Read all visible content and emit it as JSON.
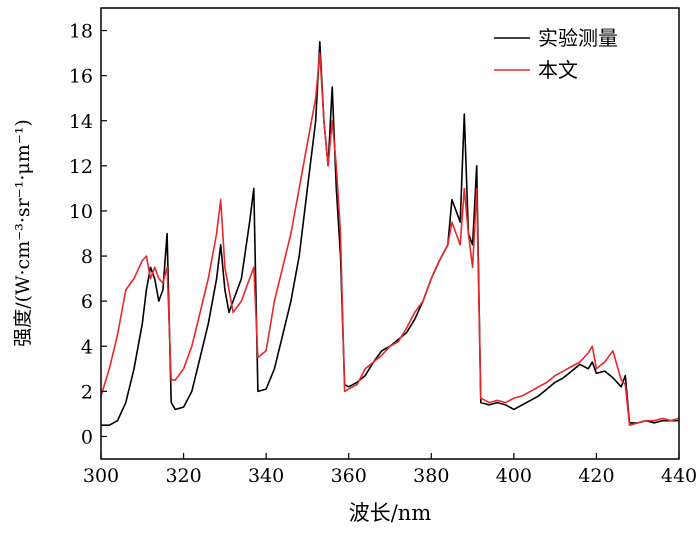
{
  "chart_data": {
    "type": "line",
    "xlabel": "波长/nm",
    "ylabel": "强度/(W·cm⁻³·sr⁻¹·μm⁻¹)",
    "xlim": [
      300,
      440
    ],
    "ylim": [
      -1,
      19
    ],
    "xticks": [
      300,
      320,
      340,
      360,
      380,
      400,
      420,
      440
    ],
    "yticks": [
      0,
      2,
      4,
      6,
      8,
      10,
      12,
      14,
      16,
      18
    ],
    "grid": false,
    "legend_position": "top-right",
    "series": [
      {
        "name": "实验测量",
        "color": "#000000",
        "x": [
          300,
          302,
          304,
          306,
          308,
          310,
          311,
          312,
          313,
          314,
          315,
          316,
          317,
          318,
          320,
          322,
          324,
          326,
          328,
          329,
          330,
          331,
          332,
          334,
          336,
          337,
          338,
          340,
          342,
          344,
          346,
          348,
          350,
          352,
          353,
          354,
          355,
          356,
          357,
          358,
          359,
          360,
          362,
          364,
          366,
          368,
          370,
          372,
          374,
          376,
          378,
          380,
          382,
          384,
          385,
          386,
          387,
          388,
          389,
          390,
          391,
          392,
          394,
          396,
          398,
          400,
          402,
          404,
          406,
          408,
          410,
          412,
          414,
          416,
          418,
          419,
          420,
          422,
          424,
          426,
          427,
          428,
          430,
          432,
          434,
          436,
          438,
          440
        ],
        "y": [
          0.5,
          0.5,
          0.7,
          1.5,
          3.0,
          5.0,
          6.5,
          7.5,
          7.0,
          6.0,
          6.5,
          9.0,
          1.5,
          1.2,
          1.3,
          2.0,
          3.5,
          5.0,
          7.0,
          8.5,
          6.5,
          5.5,
          6.0,
          7.0,
          9.5,
          11.0,
          2.0,
          2.1,
          3.0,
          4.5,
          6.0,
          8.0,
          11.0,
          14.0,
          17.5,
          14.0,
          12.0,
          15.5,
          11.0,
          8.0,
          2.3,
          2.2,
          2.4,
          2.7,
          3.3,
          3.8,
          4.0,
          4.3,
          4.6,
          5.2,
          6.0,
          7.0,
          7.8,
          8.5,
          10.5,
          10.0,
          9.5,
          14.3,
          9.0,
          8.5,
          12.0,
          1.5,
          1.4,
          1.5,
          1.4,
          1.2,
          1.4,
          1.6,
          1.8,
          2.1,
          2.4,
          2.6,
          2.9,
          3.2,
          3.0,
          3.3,
          2.8,
          2.9,
          2.6,
          2.2,
          2.7,
          0.6,
          0.6,
          0.7,
          0.6,
          0.7,
          0.7,
          0.7
        ]
      },
      {
        "name": "本文",
        "color": "#e8282b",
        "x": [
          300,
          302,
          304,
          306,
          308,
          310,
          311,
          312,
          313,
          314,
          315,
          316,
          317,
          318,
          320,
          322,
          324,
          326,
          328,
          329,
          330,
          331,
          332,
          334,
          336,
          337,
          338,
          340,
          342,
          344,
          346,
          348,
          350,
          352,
          353,
          354,
          355,
          356,
          357,
          358,
          359,
          360,
          362,
          364,
          366,
          368,
          370,
          372,
          374,
          376,
          378,
          380,
          382,
          384,
          385,
          386,
          387,
          388,
          389,
          390,
          391,
          392,
          394,
          396,
          398,
          400,
          402,
          404,
          406,
          408,
          410,
          412,
          414,
          416,
          418,
          419,
          420,
          422,
          424,
          426,
          427,
          428,
          430,
          432,
          434,
          436,
          438,
          440
        ],
        "y": [
          1.8,
          3.0,
          4.5,
          6.5,
          7.0,
          7.8,
          8.0,
          7.0,
          7.5,
          7.0,
          6.8,
          7.5,
          2.5,
          2.5,
          3.0,
          4.0,
          5.5,
          7.0,
          9.0,
          10.5,
          7.5,
          6.5,
          5.5,
          6.0,
          7.0,
          7.5,
          3.5,
          3.8,
          6.0,
          7.5,
          9.0,
          11.0,
          13.0,
          15.0,
          17.0,
          14.0,
          12.0,
          14.0,
          12.0,
          9.0,
          2.0,
          2.1,
          2.3,
          3.0,
          3.3,
          3.6,
          4.0,
          4.2,
          4.8,
          5.5,
          6.0,
          7.0,
          7.8,
          8.5,
          9.5,
          9.0,
          8.5,
          11.0,
          9.0,
          7.5,
          11.0,
          1.7,
          1.5,
          1.6,
          1.5,
          1.7,
          1.8,
          2.0,
          2.2,
          2.4,
          2.7,
          2.9,
          3.1,
          3.3,
          3.7,
          4.0,
          3.0,
          3.3,
          3.8,
          2.5,
          2.3,
          0.5,
          0.6,
          0.7,
          0.7,
          0.8,
          0.7,
          0.8
        ]
      }
    ]
  }
}
